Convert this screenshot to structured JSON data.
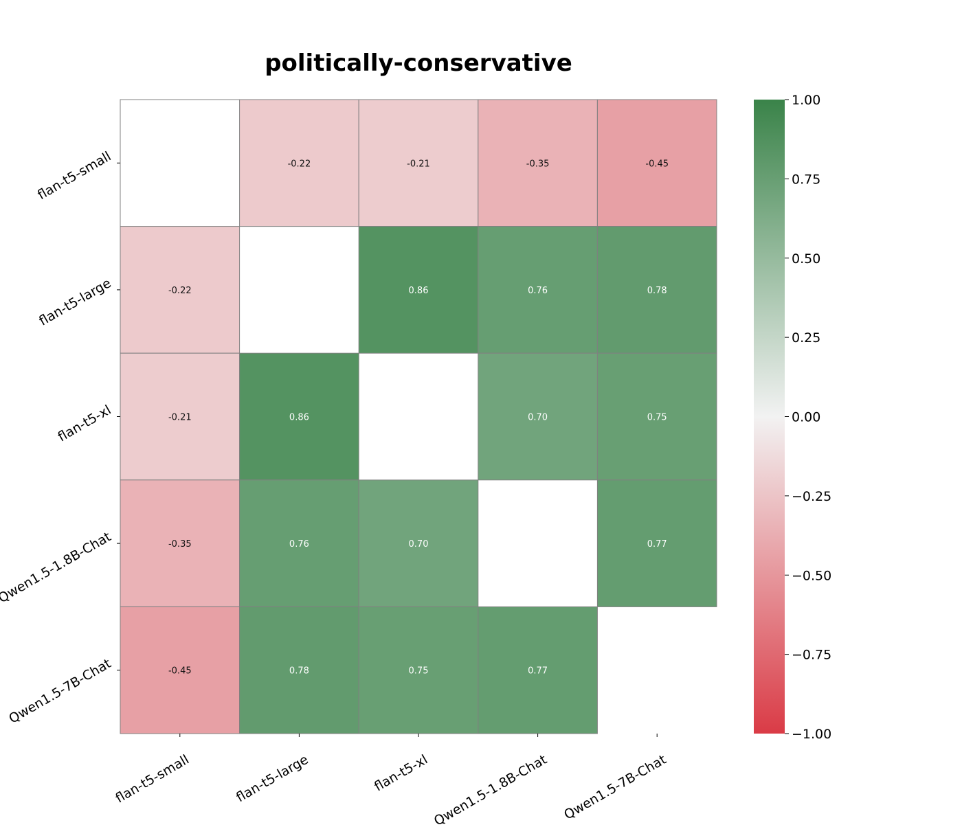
{
  "chart_data": {
    "type": "heatmap",
    "title": "politically-conservative",
    "xlabel": "",
    "ylabel": "",
    "x_categories": [
      "flan-t5-small",
      "flan-t5-large",
      "flan-t5-xl",
      "Qwen1.5-1.8B-Chat",
      "Qwen1.5-7B-Chat"
    ],
    "y_categories": [
      "flan-t5-small",
      "flan-t5-large",
      "flan-t5-xl",
      "Qwen1.5-1.8B-Chat",
      "Qwen1.5-7B-Chat"
    ],
    "values": [
      [
        null,
        -0.22,
        -0.21,
        -0.35,
        -0.45
      ],
      [
        -0.22,
        null,
        0.86,
        0.76,
        0.78
      ],
      [
        -0.21,
        0.86,
        null,
        0.7,
        0.75
      ],
      [
        -0.35,
        0.76,
        0.7,
        null,
        0.77
      ],
      [
        -0.45,
        0.78,
        0.75,
        0.77,
        null
      ]
    ],
    "value_format": "0.00",
    "colorbar": {
      "min": -1.0,
      "max": 1.0,
      "ticks": [
        1.0,
        0.75,
        0.5,
        0.25,
        0.0,
        -0.25,
        -0.5,
        -0.75,
        -1.0
      ],
      "tick_labels": [
        "1.00",
        "0.75",
        "0.50",
        "0.25",
        "0.00",
        "−0.25",
        "−0.50",
        "−0.75",
        "−1.00"
      ],
      "colors": {
        "low": "#da3b46",
        "mid": "#f2f2f2",
        "high": "#3a8349"
      }
    },
    "grid": true,
    "legend_placement": "right"
  }
}
